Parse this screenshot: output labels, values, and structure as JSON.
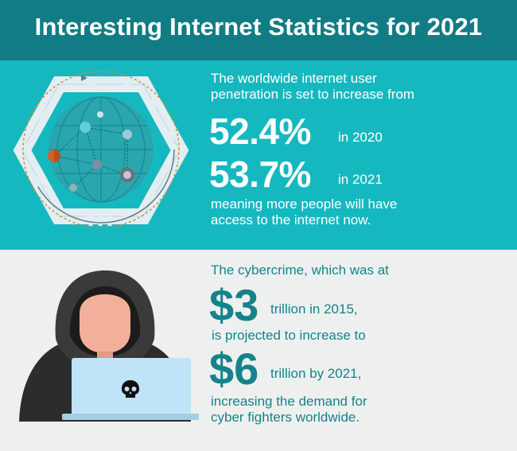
{
  "header": {
    "title": "Interesting Internet Statistics for 2021"
  },
  "internet": {
    "intro_line1": "The worldwide internet user",
    "intro_line2": "penetration is set to increase from",
    "stat1_value": "52.4%",
    "stat1_year": "in 2020",
    "stat2_value": "53.7%",
    "stat2_year": "in 2021",
    "outro_line1": "meaning more people will have",
    "outro_line2": "access to the internet now."
  },
  "cybercrime": {
    "intro": "The cybercrime, which was at",
    "value1": "$3",
    "value1_text": "trillion in 2015,",
    "middle": "is projected to increase to",
    "value2": "$6",
    "value2_text": "trillion by 2021,",
    "outro_line1": "increasing the demand for",
    "outro_line2": "cyber fighters worldwide."
  },
  "colors": {
    "header_bg": "#117c84",
    "top_panel_bg": "#16b8c0",
    "bottom_panel_bg": "#eef0ef",
    "accent_teal": "#14838b",
    "laptop": "#bfe3f7"
  },
  "icons": [
    "globe-network-icon",
    "hooded-hacker-icon",
    "skull-icon"
  ]
}
